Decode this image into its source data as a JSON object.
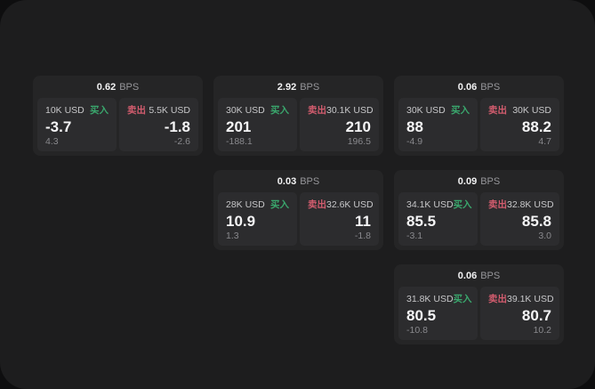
{
  "labels": {
    "bps_unit": "BPS",
    "buy": "买入",
    "sell": "卖出"
  },
  "colors": {
    "page_background": "#1d1d1e",
    "backdrop": "#0e0e0f",
    "card_background": "#252526",
    "panel_background": "#2c2c2e",
    "buy_green": "#3aa76d",
    "sell_red": "#d25c6e"
  },
  "cards": [
    {
      "bps": "0.62",
      "buy": {
        "amount": "10K USD",
        "price": "-3.7",
        "delta": "4.3"
      },
      "sell": {
        "amount": "5.5K USD",
        "price": "-1.8",
        "delta": "-2.6"
      }
    },
    {
      "bps": "2.92",
      "buy": {
        "amount": "30K USD",
        "price": "201",
        "delta": "-188.1"
      },
      "sell": {
        "amount": "30.1K USD",
        "price": "210",
        "delta": "196.5"
      }
    },
    {
      "bps": "0.06",
      "buy": {
        "amount": "30K USD",
        "price": "88",
        "delta": "-4.9"
      },
      "sell": {
        "amount": "30K USD",
        "price": "88.2",
        "delta": "4.7"
      }
    },
    {
      "bps": "0.03",
      "buy": {
        "amount": "28K USD",
        "price": "10.9",
        "delta": "1.3"
      },
      "sell": {
        "amount": "32.6K USD",
        "price": "11",
        "delta": "-1.8"
      }
    },
    {
      "bps": "0.09",
      "buy": {
        "amount": "34.1K USD",
        "price": "85.5",
        "delta": "-3.1"
      },
      "sell": {
        "amount": "32.8K USD",
        "price": "85.8",
        "delta": "3.0"
      }
    },
    {
      "bps": "0.06",
      "buy": {
        "amount": "31.8K USD",
        "price": "80.5",
        "delta": "-10.8"
      },
      "sell": {
        "amount": "39.1K USD",
        "price": "80.7",
        "delta": "10.2"
      }
    }
  ]
}
